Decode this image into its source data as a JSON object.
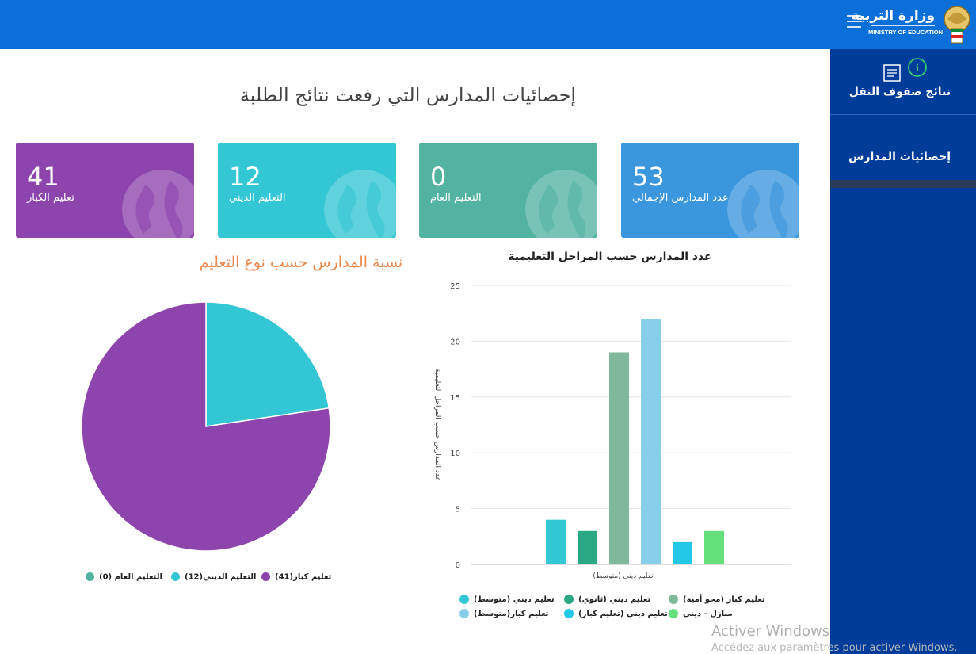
{
  "header": {
    "logo_ar": "وزارة التربية",
    "logo_en": "MINISTRY OF EDUCATION",
    "brand_color": "#0a6fd8"
  },
  "sidebar": {
    "items": [
      {
        "label": "نتائج صفوف النقل",
        "icon": "document-info-icon"
      },
      {
        "label": "إحصائيات المدارس"
      }
    ],
    "bg_color": "#003c9a"
  },
  "main": {
    "title": "إحصائيات المدارس التي رفعت نتائج الطلبة"
  },
  "cards": [
    {
      "value": "41",
      "label": "تعليم الكبار",
      "color": "#8e44ad",
      "icon": "globe-icon"
    },
    {
      "value": "12",
      "label": "التعليم الديني",
      "color": "#33c6d4",
      "icon": "globe-icon"
    },
    {
      "value": "0",
      "label": "التعليم العام",
      "color": "#52b3a0",
      "icon": "globe-icon"
    },
    {
      "value": "53",
      "label": "عدد المدارس الإجمالي",
      "color": "#3a96dd",
      "icon": "globe-icon"
    }
  ],
  "pie_chart_title": "نسبة المدارس حسب نوع التعليم",
  "bar_chart_title": "عدد المدارس حسب المراحل التعليمية",
  "chart_data": [
    {
      "type": "pie",
      "title": "نسبة المدارس حسب نوع التعليم",
      "slices": [
        {
          "name": "التعليم العام (0)",
          "value": 0,
          "color": "#52b3a0"
        },
        {
          "name": "التعليم الديني(12)",
          "value": 12,
          "color": "#33c6d4"
        },
        {
          "name": "تعليم كبار(41)",
          "value": 41,
          "color": "#8e44ad"
        }
      ],
      "legend": "bottom"
    },
    {
      "type": "bar",
      "title": "عدد المدارس حسب المراحل التعليمية",
      "ylabel": "عدد المدارس حسب المراحل التعليمية",
      "categories": [
        "تعليم ديني (متوسط)"
      ],
      "ylim": [
        0,
        25
      ],
      "yticks": [
        0,
        5,
        10,
        15,
        20,
        25
      ],
      "grid": true,
      "series": [
        {
          "name": "تعليم ديني (متوسط)",
          "values": [
            4
          ],
          "color": "#33c6d4"
        },
        {
          "name": "تعليم ديني (ثانوي)",
          "values": [
            3
          ],
          "color": "#2aa884"
        },
        {
          "name": "تعليم كبار (محو أمية)",
          "values": [
            19
          ],
          "color": "#7fb89a"
        },
        {
          "name": "تعليم كبار(متوسط)",
          "values": [
            22
          ],
          "color": "#87ceeb"
        },
        {
          "name": "تعليم ديني (تعليم كبار)",
          "values": [
            2
          ],
          "color": "#22c8e5"
        },
        {
          "name": "منازل - ديني",
          "values": [
            3
          ],
          "color": "#66e07a"
        }
      ],
      "legend": "bottom"
    }
  ],
  "watermark": {
    "line1": "Activer Windows",
    "line2": "Accédez aux paramètres pour activer Windows."
  }
}
